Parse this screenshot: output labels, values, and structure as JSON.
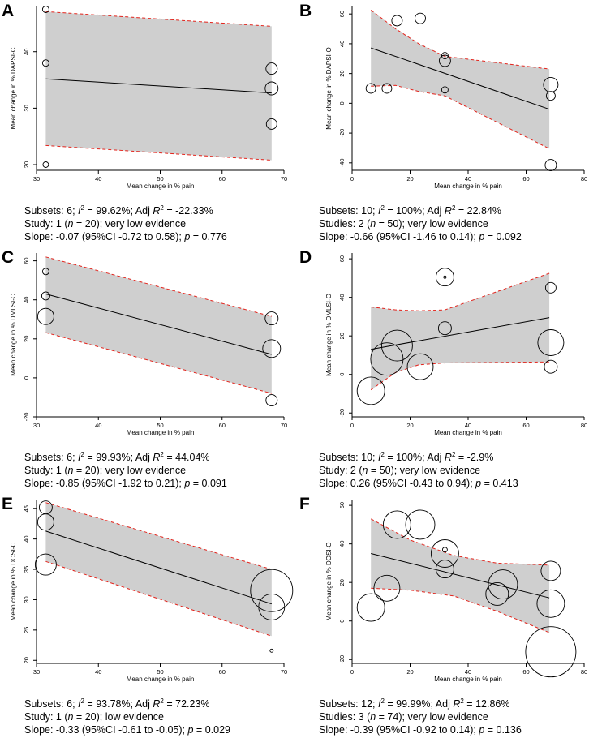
{
  "chart_data": [
    {
      "id": "A",
      "type": "scatter",
      "ylabel": "Mean change in % DAPSI-C",
      "xlabel": "Mean change in % pain",
      "xlim": [
        30,
        70
      ],
      "ylim": [
        19,
        48
      ],
      "xticks": [
        30,
        40,
        50,
        60,
        70
      ],
      "yticks": [
        20,
        30,
        40
      ],
      "points": [
        {
          "x": 31.5,
          "y": 47.5,
          "r": 4
        },
        {
          "x": 31.5,
          "y": 38,
          "r": 4
        },
        {
          "x": 31.5,
          "y": 20,
          "r": 3.5
        },
        {
          "x": 68,
          "y": 37,
          "r": 7
        },
        {
          "x": 68,
          "y": 33.5,
          "r": 8
        },
        {
          "x": 68,
          "y": 27.2,
          "r": 6.5
        }
      ],
      "fit": [
        [
          31.5,
          35.2
        ],
        [
          68,
          32.7
        ]
      ],
      "ci_upper": [
        [
          31.5,
          47.1
        ],
        [
          68,
          44.5
        ]
      ],
      "ci_lower": [
        [
          31.5,
          23.4
        ],
        [
          68,
          20.8
        ]
      ],
      "caption": [
        [
          {
            "t": "Subsets: 6; "
          },
          {
            "t": "I",
            "i": true
          },
          {
            "t": "2",
            "sup": true
          },
          {
            "t": " = 99.62%; Adj "
          },
          {
            "t": "R",
            "i": true
          },
          {
            "t": "2",
            "sup": true
          },
          {
            "t": " = -22.33%"
          }
        ],
        [
          {
            "t": "Study: 1 ("
          },
          {
            "t": "n",
            "i": true
          },
          {
            "t": " = 20); very low evidence"
          }
        ],
        [
          {
            "t": "Slope: -0.07 (95%CI -0.72 to 0.58); "
          },
          {
            "t": "p",
            "i": true
          },
          {
            "t": " = 0.776"
          }
        ]
      ]
    },
    {
      "id": "B",
      "type": "scatter",
      "ylabel": "Mean change in % DAPSI-O",
      "xlabel": "Mean change in % pain",
      "xlim": [
        0,
        80
      ],
      "ylim": [
        -45,
        65
      ],
      "xticks": [
        0,
        20,
        40,
        60,
        80
      ],
      "yticks": [
        -40,
        -20,
        0,
        20,
        40,
        60
      ],
      "points": [
        {
          "x": 6.5,
          "y": 10,
          "r": 6
        },
        {
          "x": 12,
          "y": 10,
          "r": 6
        },
        {
          "x": 15.5,
          "y": 55.5,
          "r": 6.5
        },
        {
          "x": 23.5,
          "y": 57,
          "r": 6.5
        },
        {
          "x": 32,
          "y": 32,
          "r": 4
        },
        {
          "x": 32,
          "y": 28.5,
          "r": 7
        },
        {
          "x": 32,
          "y": 9,
          "r": 4
        },
        {
          "x": 68.5,
          "y": 12.5,
          "r": 9
        },
        {
          "x": 68.5,
          "y": 5,
          "r": 5.5
        },
        {
          "x": 68.5,
          "y": -41.5,
          "r": 7
        }
      ],
      "fit": [
        [
          6.5,
          37.2
        ],
        [
          68,
          -4
        ]
      ],
      "ci_upper": [
        [
          6.5,
          62.6
        ],
        [
          15,
          50
        ],
        [
          23,
          40
        ],
        [
          32,
          31.5
        ],
        [
          68,
          23
        ]
      ],
      "ci_lower": [
        [
          6.5,
          11.5
        ],
        [
          15,
          12
        ],
        [
          23,
          8
        ],
        [
          32,
          5
        ],
        [
          68,
          -30.5
        ]
      ],
      "caption": [
        [
          {
            "t": "Subsets: 10; "
          },
          {
            "t": "I",
            "i": true
          },
          {
            "t": "2",
            "sup": true
          },
          {
            "t": " = 100%; Adj "
          },
          {
            "t": "R",
            "i": true
          },
          {
            "t": "2",
            "sup": true
          },
          {
            "t": " = 22.84%"
          }
        ],
        [
          {
            "t": "Studies: 2 ("
          },
          {
            "t": "n",
            "i": true
          },
          {
            "t": " = 50); very low evidence"
          }
        ],
        [
          {
            "t": "Slope: -0.66 (95%CI -1.46 to 0.14); "
          },
          {
            "t": "p",
            "i": true
          },
          {
            "t": " = 0.092"
          }
        ]
      ]
    },
    {
      "id": "C",
      "type": "scatter",
      "ylabel": "Mean change in % DMLSI-C",
      "xlabel": "Mean change in % pain",
      "xlim": [
        30,
        70
      ],
      "ylim": [
        -20,
        64
      ],
      "xticks": [
        30,
        40,
        50,
        60,
        70
      ],
      "yticks": [
        -20,
        0,
        20,
        40,
        60
      ],
      "points": [
        {
          "x": 31.5,
          "y": 54.5,
          "r": 4
        },
        {
          "x": 31.5,
          "y": 42,
          "r": 5
        },
        {
          "x": 31.5,
          "y": 31.5,
          "r": 10
        },
        {
          "x": 68,
          "y": 30.5,
          "r": 8
        },
        {
          "x": 68,
          "y": 15,
          "r": 11
        },
        {
          "x": 68,
          "y": -11.5,
          "r": 7
        }
      ],
      "fit": [
        [
          31.5,
          43
        ],
        [
          68,
          12
        ]
      ],
      "ci_upper": [
        [
          31.5,
          62
        ],
        [
          68,
          31.5
        ]
      ],
      "ci_lower": [
        [
          31.5,
          23.2
        ],
        [
          68,
          -8
        ]
      ],
      "caption": [
        [
          {
            "t": "Subsets: 6; "
          },
          {
            "t": "I",
            "i": true
          },
          {
            "t": "2",
            "sup": true
          },
          {
            "t": " = 99.93%; Adj "
          },
          {
            "t": "R",
            "i": true
          },
          {
            "t": "2",
            "sup": true
          },
          {
            "t": " = 44.04%"
          }
        ],
        [
          {
            "t": "Study: 1 ("
          },
          {
            "t": "n",
            "i": true
          },
          {
            "t": " = 20); very low evidence"
          }
        ],
        [
          {
            "t": "Slope: -0.85 (95%CI -1.92 to 0.21); "
          },
          {
            "t": "p",
            "i": true
          },
          {
            "t": " = 0.091"
          }
        ]
      ]
    },
    {
      "id": "D",
      "type": "scatter",
      "ylabel": "Mean change in % DMLSI-O",
      "xlabel": "Mean change in % pain",
      "xlim": [
        0,
        80
      ],
      "ylim": [
        -22,
        63
      ],
      "xticks": [
        0,
        20,
        40,
        60,
        80
      ],
      "yticks": [
        -20,
        0,
        20,
        40,
        60
      ],
      "points": [
        {
          "x": 6.5,
          "y": -8.5,
          "r": 17
        },
        {
          "x": 12,
          "y": 8,
          "r": 20
        },
        {
          "x": 15.5,
          "y": 15,
          "r": 19
        },
        {
          "x": 23.5,
          "y": 4,
          "r": 16
        },
        {
          "x": 32,
          "y": 50.5,
          "r": 11
        },
        {
          "x": 32,
          "y": 50.5,
          "r": 1.5
        },
        {
          "x": 32,
          "y": 24,
          "r": 8
        },
        {
          "x": 68.5,
          "y": 45,
          "r": 6.5
        },
        {
          "x": 68.5,
          "y": 16.5,
          "r": 16
        },
        {
          "x": 68.5,
          "y": 4,
          "r": 8
        }
      ],
      "fit": [
        [
          6.5,
          13
        ],
        [
          68,
          29.5
        ]
      ],
      "ci_upper": [
        [
          6.5,
          35
        ],
        [
          15,
          33.5
        ],
        [
          23,
          33
        ],
        [
          32,
          33.5
        ],
        [
          68,
          52.5
        ]
      ],
      "ci_lower": [
        [
          6.5,
          -8
        ],
        [
          15,
          1
        ],
        [
          23,
          5
        ],
        [
          32,
          6
        ],
        [
          68,
          6.5
        ]
      ],
      "caption": [
        [
          {
            "t": "Subsets: 10; "
          },
          {
            "t": "I",
            "i": true
          },
          {
            "t": "2",
            "sup": true
          },
          {
            "t": " = 100%; Adj "
          },
          {
            "t": "R",
            "i": true
          },
          {
            "t": "2",
            "sup": true
          },
          {
            "t": " = -2.9%"
          }
        ],
        [
          {
            "t": "Study: 2 ("
          },
          {
            "t": "n",
            "i": true
          },
          {
            "t": " = 50); very low evidence"
          }
        ],
        [
          {
            "t": "Slope: 0.26 (95%CI -0.43 to 0.94); "
          },
          {
            "t": "p",
            "i": true
          },
          {
            "t": " = 0.413"
          }
        ]
      ]
    },
    {
      "id": "E",
      "type": "scatter",
      "ylabel": "Mean change in % DOSI-C",
      "xlabel": "Mean change in % pain",
      "xlim": [
        30,
        70
      ],
      "ylim": [
        19.5,
        46.5
      ],
      "xticks": [
        30,
        40,
        50,
        60,
        70
      ],
      "yticks": [
        20,
        25,
        30,
        35,
        40,
        45
      ],
      "points": [
        {
          "x": 31.5,
          "y": 45.2,
          "r": 8
        },
        {
          "x": 31.5,
          "y": 42.8,
          "r": 10
        },
        {
          "x": 31.5,
          "y": 35.8,
          "r": 13
        },
        {
          "x": 68,
          "y": 31.5,
          "r": 26
        },
        {
          "x": 68,
          "y": 28.8,
          "r": 16
        },
        {
          "x": 68,
          "y": 21.6,
          "r": 2
        }
      ],
      "fit": [
        [
          31.5,
          41.3
        ],
        [
          68,
          29.3
        ]
      ],
      "ci_upper": [
        [
          31.5,
          46
        ],
        [
          68,
          35
        ]
      ],
      "ci_lower": [
        [
          31.5,
          36.3
        ],
        [
          68,
          24
        ]
      ],
      "caption": [
        [
          {
            "t": "Subsets: 6; "
          },
          {
            "t": "I",
            "i": true
          },
          {
            "t": "2",
            "sup": true
          },
          {
            "t": " = 93.78%; Adj "
          },
          {
            "t": "R",
            "i": true
          },
          {
            "t": "2",
            "sup": true
          },
          {
            "t": " = 72.23%"
          }
        ],
        [
          {
            "t": "Study: 1 ("
          },
          {
            "t": "n",
            "i": true
          },
          {
            "t": " = 20); low evidence"
          }
        ],
        [
          {
            "t": "Slope: -0.33 (95%CI -0.61 to -0.05); "
          },
          {
            "t": "p",
            "i": true
          },
          {
            "t": " = 0.029"
          }
        ]
      ]
    },
    {
      "id": "F",
      "type": "scatter",
      "ylabel": "Mean change in % DOSI-O",
      "xlabel": "Mean change in % pain",
      "xlim": [
        0,
        80
      ],
      "ylim": [
        -22,
        63
      ],
      "xticks": [
        0,
        20,
        40,
        60,
        80
      ],
      "yticks": [
        -20,
        0,
        20,
        40,
        60
      ],
      "points": [
        {
          "x": 6.5,
          "y": 7,
          "r": 17
        },
        {
          "x": 12,
          "y": 17,
          "r": 16
        },
        {
          "x": 15.5,
          "y": 50,
          "r": 17
        },
        {
          "x": 23.5,
          "y": 50,
          "r": 18
        },
        {
          "x": 32,
          "y": 37,
          "r": 3
        },
        {
          "x": 32,
          "y": 35,
          "r": 17
        },
        {
          "x": 32,
          "y": 27,
          "r": 11
        },
        {
          "x": 50,
          "y": 14,
          "r": 14
        },
        {
          "x": 52,
          "y": 19,
          "r": 18
        },
        {
          "x": 68.5,
          "y": 26,
          "r": 12
        },
        {
          "x": 68.5,
          "y": 9,
          "r": 17
        },
        {
          "x": 68.5,
          "y": -16,
          "r": 31
        }
      ],
      "fit": [
        [
          6.5,
          35
        ],
        [
          68,
          12
        ]
      ],
      "ci_upper": [
        [
          6.5,
          53
        ],
        [
          20,
          42
        ],
        [
          35,
          34
        ],
        [
          50,
          30
        ],
        [
          68,
          29
        ]
      ],
      "ci_lower": [
        [
          6.5,
          17
        ],
        [
          20,
          16
        ],
        [
          35,
          13
        ],
        [
          50,
          5
        ],
        [
          68,
          -6
        ]
      ],
      "caption": [
        [
          {
            "t": "Subsets: 12; "
          },
          {
            "t": "I",
            "i": true
          },
          {
            "t": "2",
            "sup": true
          },
          {
            "t": " = 99.99%; Adj "
          },
          {
            "t": "R",
            "i": true
          },
          {
            "t": "2",
            "sup": true
          },
          {
            "t": " = 12.86%"
          }
        ],
        [
          {
            "t": "Studies: 3 ("
          },
          {
            "t": "n",
            "i": true
          },
          {
            "t": " = 74); very low evidence"
          }
        ],
        [
          {
            "t": "Slope: -0.39 (95%CI -0.92 to 0.14); "
          },
          {
            "t": "p",
            "i": true
          },
          {
            "t": " = 0.136"
          }
        ]
      ]
    }
  ]
}
